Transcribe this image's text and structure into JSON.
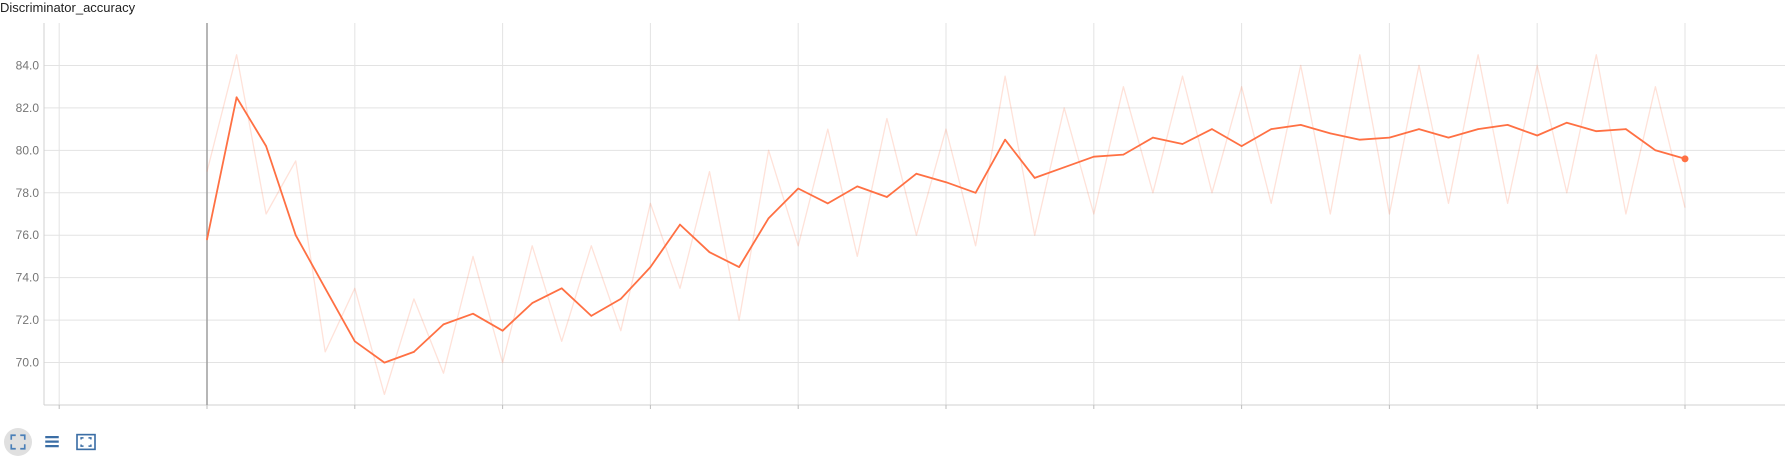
{
  "chart_data": {
    "type": "line",
    "title": "Discriminator_accuracy",
    "xlabel": "",
    "ylabel": "",
    "ylim": [
      68.0,
      86.0
    ],
    "yticks": [
      "70.0",
      "72.0",
      "74.0",
      "76.0",
      "78.0",
      "80.0",
      "82.0",
      "84.0"
    ],
    "grid": true,
    "series": [
      {
        "role": "smoothed",
        "color": "#ff7043",
        "x": [
          0,
          50,
          100,
          150,
          200,
          250,
          300,
          350,
          400,
          450,
          500,
          550,
          600,
          650,
          700,
          750,
          800,
          850,
          900,
          950,
          1000,
          1050,
          1100,
          1150,
          1200,
          1250,
          1300,
          1350,
          1400,
          1450,
          1500,
          1550,
          1600,
          1650,
          1700,
          1750,
          1800,
          1850,
          1900,
          1950,
          2000,
          2050,
          2100,
          2150,
          2200,
          2250,
          2300,
          2350,
          2400,
          2450,
          2500
        ],
        "values": [
          75.8,
          82.5,
          80.2,
          76.0,
          73.5,
          71.0,
          70.0,
          70.5,
          71.8,
          72.3,
          71.5,
          72.8,
          73.5,
          72.2,
          73.0,
          74.5,
          76.5,
          75.2,
          74.5,
          76.8,
          78.2,
          77.5,
          78.3,
          77.8,
          78.9,
          78.5,
          78.0,
          80.5,
          78.7,
          79.2,
          79.7,
          79.8,
          80.6,
          80.3,
          81.0,
          80.2,
          81.0,
          81.2,
          80.8,
          80.5,
          80.6,
          81.0,
          80.6,
          81.0,
          81.2,
          80.7,
          81.3,
          80.9,
          81.0,
          80.0,
          79.6
        ]
      },
      {
        "role": "raw",
        "color": "#ff7043",
        "opacity": 0.2,
        "x": [
          0,
          50,
          100,
          150,
          200,
          250,
          300,
          350,
          400,
          450,
          500,
          550,
          600,
          650,
          700,
          750,
          800,
          850,
          900,
          950,
          1000,
          1050,
          1100,
          1150,
          1200,
          1250,
          1300,
          1350,
          1400,
          1450,
          1500,
          1550,
          1600,
          1650,
          1700,
          1750,
          1800,
          1850,
          1900,
          1950,
          2000,
          2050,
          2100,
          2150,
          2200,
          2250,
          2300,
          2350,
          2400,
          2450,
          2500
        ],
        "values": [
          79.0,
          84.5,
          77.0,
          79.5,
          70.5,
          73.5,
          68.5,
          73.0,
          69.5,
          75.0,
          70.0,
          75.5,
          71.0,
          75.5,
          71.5,
          77.5,
          73.5,
          79.0,
          72.0,
          80.0,
          75.5,
          81.0,
          75.0,
          81.5,
          76.0,
          81.0,
          75.5,
          83.5,
          76.0,
          82.0,
          77.0,
          83.0,
          78.0,
          83.5,
          78.0,
          83.0,
          77.5,
          84.0,
          77.0,
          84.5,
          77.0,
          84.0,
          77.5,
          84.5,
          77.5,
          84.0,
          78.0,
          84.5,
          77.0,
          83.0,
          77.3
        ]
      }
    ]
  },
  "toolbar": {
    "buttons": [
      {
        "name": "fit-to-data-button",
        "icon": "fullscreen-icon"
      },
      {
        "name": "toggle-log-scale-button",
        "icon": "list-icon"
      },
      {
        "name": "fit-domain-button",
        "icon": "fit-screen-icon"
      }
    ]
  }
}
